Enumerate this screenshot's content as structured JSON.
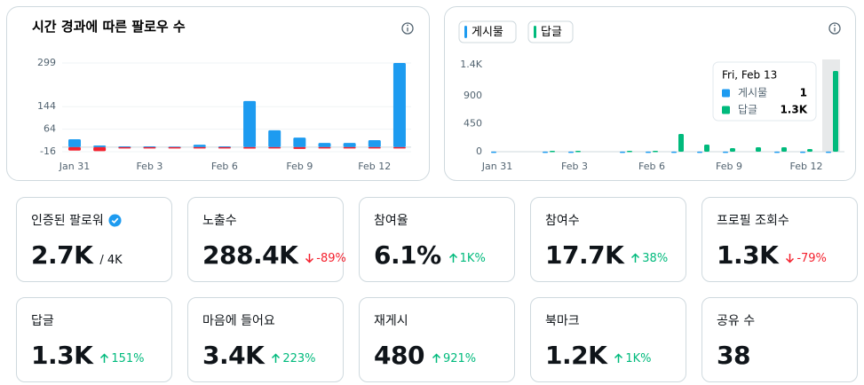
{
  "chart_data": [
    {
      "type": "bar",
      "barmode": "overlay",
      "title": "시간 경과에 따른 팔로우 수",
      "categories": [
        "Jan 31",
        null,
        null,
        "Feb 3",
        null,
        null,
        "Feb 6",
        null,
        null,
        "Feb 9",
        null,
        null,
        "Feb 12",
        null
      ],
      "series": [
        {
          "color": "#1d9bf0",
          "values": [
            28,
            6,
            3,
            3,
            2,
            9,
            3,
            164,
            60,
            34,
            15,
            15,
            25,
            299
          ]
        },
        {
          "color": "#f4212e",
          "values": [
            -12,
            -14,
            -3,
            -4,
            -4,
            -1,
            -3,
            -5,
            -4,
            -6,
            -4,
            -3,
            -4,
            -2
          ]
        }
      ],
      "ylim": [
        -16,
        299
      ],
      "yticks": [
        -16,
        64,
        144,
        299
      ],
      "grid": true
    },
    {
      "type": "bar",
      "barmode": "group",
      "categories": [
        "Jan 31",
        null,
        null,
        "Feb 3",
        null,
        null,
        "Feb 6",
        null,
        null,
        "Feb 9",
        null,
        null,
        "Feb 12",
        null
      ],
      "series": [
        {
          "name": "게시물",
          "color": "#1d9bf0",
          "values": [
            1,
            0,
            1,
            1,
            0,
            1,
            1,
            1,
            1,
            1,
            0,
            1,
            1,
            1
          ]
        },
        {
          "name": "답글",
          "color": "#00ba7c",
          "values": [
            0,
            0,
            14,
            14,
            0,
            14,
            14,
            285,
            115,
            57,
            71,
            71,
            43,
            1300
          ]
        }
      ],
      "ylim": [
        0,
        1400
      ],
      "yticks": [
        0,
        450,
        900,
        {
          "value": 1400,
          "label": "1.4K"
        }
      ],
      "grid": false,
      "tooltip": {
        "title": "Fri, Feb 13",
        "values": [
          1,
          {
            "value": 1300,
            "label": "1.3K"
          }
        ]
      }
    }
  ],
  "cards": [
    {
      "label": "인증된 팔로워",
      "value": "2.7K",
      "sub": "/ 4K",
      "verified": true
    },
    {
      "label": "노출수",
      "value": "288.4K",
      "change": "-89%",
      "trend": "down"
    },
    {
      "label": "참여율",
      "value": "6.1%",
      "change": "1K%",
      "trend": "up"
    },
    {
      "label": "참여수",
      "value": "17.7K",
      "change": "38%",
      "trend": "up"
    },
    {
      "label": "프로필 조회수",
      "value": "1.3K",
      "change": "-79%",
      "trend": "down"
    },
    {
      "label": "답글",
      "value": "1.3K",
      "change": "151%",
      "trend": "up"
    },
    {
      "label": "마음에 들어요",
      "value": "3.4K",
      "change": "223%",
      "trend": "up"
    },
    {
      "label": "재게시",
      "value": "480",
      "change": "921%",
      "trend": "up"
    },
    {
      "label": "북마크",
      "value": "1.2K",
      "change": "1K%",
      "trend": "up"
    },
    {
      "label": "공유 수",
      "value": "38"
    }
  ]
}
